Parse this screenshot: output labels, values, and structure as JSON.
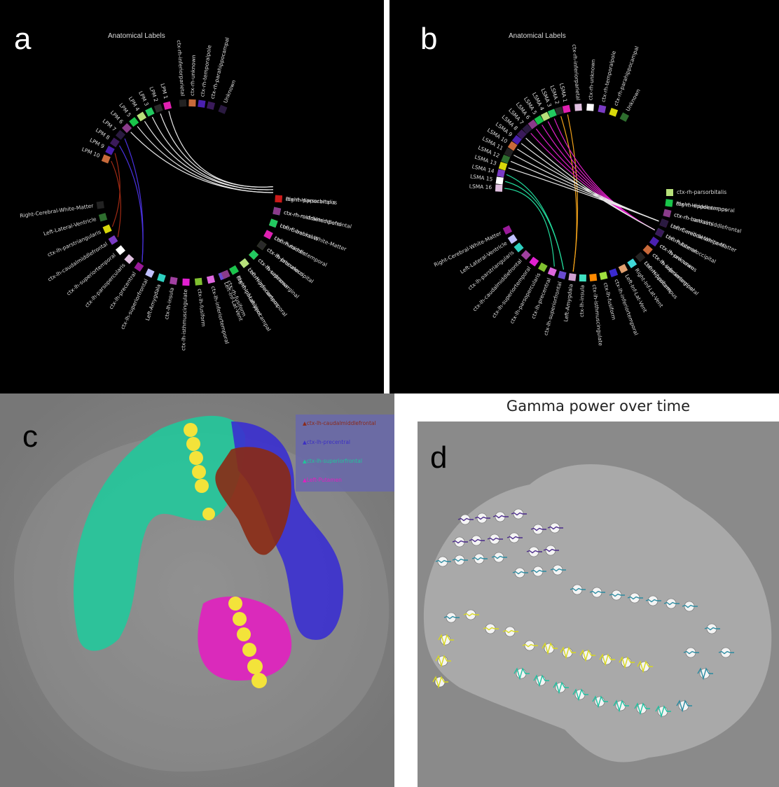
{
  "panels": {
    "a": {
      "letter": "a",
      "title": "Anatomical Labels",
      "labels": [
        {
          "text": "LPM 1",
          "angle": -104
        },
        {
          "text": "LPM 2",
          "angle": -110
        },
        {
          "text": "LPM 3",
          "angle": -116
        },
        {
          "text": "LPM 4",
          "angle": -122
        },
        {
          "text": "LPM 5",
          "angle": -128
        },
        {
          "text": "LPM 6",
          "angle": -134
        },
        {
          "text": "LPM 7",
          "angle": -140
        },
        {
          "text": "LPM 8",
          "angle": -146
        },
        {
          "text": "LPM 9",
          "angle": -152
        },
        {
          "text": "LPM 10",
          "angle": -158
        },
        {
          "text": "Right-Cerebral-White-Matter",
          "angle": -188
        },
        {
          "text": "Left-Lateral-Ventricle",
          "angle": -196
        },
        {
          "text": "ctx-lh-parstriangularis",
          "angle": -204
        },
        {
          "text": "ctx-lh-caudalmiddlefrontal",
          "angle": -212
        },
        {
          "text": "ctx-lh-superiortemporal",
          "angle": -220
        },
        {
          "text": "ctx-lh-parsopercularis",
          "angle": -228
        },
        {
          "text": "ctx-lh-precentral",
          "angle": -236
        },
        {
          "text": "ctx-lh-superiorfrontal",
          "angle": -244
        },
        {
          "text": "Left-Amygdala",
          "angle": -252
        },
        {
          "text": "ctx-lh-insula",
          "angle": -260
        },
        {
          "text": "ctx-lh-isthmuscingulate",
          "angle": -268
        },
        {
          "text": "ctx-lh-fusiform",
          "angle": -276
        },
        {
          "text": "ctx-lh-inferiortemporal",
          "angle": -284
        },
        {
          "text": "Left-Inf-Lat-Vent",
          "angle": -292
        },
        {
          "text": "Right-Inf-Lat-Vent",
          "angle": -300
        },
        {
          "text": "Left-Hippocampus",
          "angle": -308
        },
        {
          "text": "ctx-lh-supramarginal",
          "angle": -316
        },
        {
          "text": "ctx-lh-precuneus",
          "angle": -324
        },
        {
          "text": "Left-Putamen",
          "angle": -332
        },
        {
          "text": "Left-Cerebral-White-Matter",
          "angle": -340
        },
        {
          "text": "ctx-rh-rostralmiddlefrontal",
          "angle": -348
        },
        {
          "text": "Right-Hippocampus",
          "angle": -356
        },
        {
          "text": "ctx-rh-parsorbitalis",
          "angle": 4
        },
        {
          "text": "ctx-rh-middletemporal",
          "angle": 12
        },
        {
          "text": "ctx-rh-bankssts",
          "angle": 20
        },
        {
          "text": "ctx-rh-middletemporal",
          "angle": 28
        },
        {
          "text": "ctx-rh-lateraloccipital",
          "angle": 36
        },
        {
          "text": "ctx-rh-unknown",
          "angle": 44
        },
        {
          "text": "ctx-rh-inferiortemporal",
          "angle": 52
        },
        {
          "text": "ctx-rh-parahippocampal",
          "angle": 60
        },
        {
          "text": "ctx-rh-fusiform",
          "angle": 66
        },
        {
          "text": "Unknown",
          "angle": -68
        },
        {
          "text": "ctx-rh-parahippocampal",
          "angle": -76
        },
        {
          "text": "ctx-rh-temporalpole",
          "angle": -82
        },
        {
          "text": "ctx-rh-unknown",
          "angle": -88
        },
        {
          "text": "ctx-rh-inferiorparietal",
          "angle": -94
        }
      ]
    },
    "b": {
      "letter": "b",
      "title": "Anatomical Labels",
      "labels": [
        {
          "text": "LSMA 1",
          "angle": -102
        },
        {
          "text": "LSMA 2",
          "angle": -107
        },
        {
          "text": "LSMA 3",
          "angle": -112
        },
        {
          "text": "LSMA 4",
          "angle": -117
        },
        {
          "text": "LSMA 5",
          "angle": -122
        },
        {
          "text": "LSMA 6",
          "angle": -127
        },
        {
          "text": "LSMA 7",
          "angle": -132
        },
        {
          "text": "LSMA 8",
          "angle": -137
        },
        {
          "text": "LSMA 9",
          "angle": -142
        },
        {
          "text": "LSMA 10",
          "angle": -147
        },
        {
          "text": "LSMA 11",
          "angle": -152
        },
        {
          "text": "LSMA 12",
          "angle": -157
        },
        {
          "text": "LSMA 13",
          "angle": -162
        },
        {
          "text": "LSMA 14",
          "angle": -167
        },
        {
          "text": "LSMA 15",
          "angle": -172
        },
        {
          "text": "LSMA 16",
          "angle": -177
        },
        {
          "text": "Right-Cerebral-White-Matter",
          "angle": -206
        },
        {
          "text": "Left-Lateral-Ventricle",
          "angle": -213
        },
        {
          "text": "ctx-lh-parstriangularis",
          "angle": -220
        },
        {
          "text": "ctx-lh-caudalmiddlefrontal",
          "angle": -227
        },
        {
          "text": "ctx-lh-superiortemporal",
          "angle": -234
        },
        {
          "text": "ctx-lh-parsopercularis",
          "angle": -241
        },
        {
          "text": "ctx-lh-precentral",
          "angle": -248
        },
        {
          "text": "ctx-lh-superiorfrontal",
          "angle": -255
        },
        {
          "text": "Left-Amygdala",
          "angle": -262
        },
        {
          "text": "ctx-lh-insula",
          "angle": -269
        },
        {
          "text": "ctx-lh-isthmuscingulate",
          "angle": -276
        },
        {
          "text": "ctx-lh-fusiform",
          "angle": -283
        },
        {
          "text": "ctx-lh-inferiortemporal",
          "angle": -290
        },
        {
          "text": "Left-Inf-Lat-Vent",
          "angle": -297
        },
        {
          "text": "Right-Inf-Lat-Vent",
          "angle": -304
        },
        {
          "text": "Left-Hippocampus",
          "angle": -311
        },
        {
          "text": "ctx-lh-supramarginal",
          "angle": -318
        },
        {
          "text": "ctx-lh-precuneus",
          "angle": -325
        },
        {
          "text": "Left-Putamen",
          "angle": -332
        },
        {
          "text": "Left-Cerebral-White-Matter",
          "angle": -339
        },
        {
          "text": "ctx-rh-rostralmiddlefrontal",
          "angle": -346
        },
        {
          "text": "Right-Hippocampus",
          "angle": -353
        },
        {
          "text": "ctx-rh-parsorbitalis",
          "angle": 0
        },
        {
          "text": "ctx-rh-middletemporal",
          "angle": 7
        },
        {
          "text": "ctx-rh-bankssts",
          "angle": 14
        },
        {
          "text": "ctx-rh-middletemporal",
          "angle": 21
        },
        {
          "text": "ctx-rh-lateraloccipital",
          "angle": 28
        },
        {
          "text": "ctx-rh-unknown",
          "angle": 35
        },
        {
          "text": "ctx-rh-inferiortemporal",
          "angle": 42
        },
        {
          "text": "ctx-rh-fusiform",
          "angle": 49
        },
        {
          "text": "Unknown",
          "angle": -62
        },
        {
          "text": "ctx-rh-parahippocampal",
          "angle": -70
        },
        {
          "text": "ctx-rh-temporalpole",
          "angle": -78
        },
        {
          "text": "ctx-rh-unknown",
          "angle": -86
        },
        {
          "text": "ctx-rh-inferiorparietal",
          "angle": -94
        }
      ]
    },
    "c": {
      "letter": "c",
      "legend": [
        {
          "text": "ctx-lh-caudalmiddlefrontal",
          "color": "#8b2a1a"
        },
        {
          "text": "ctx-lh-precentral",
          "color": "#3b2fc4"
        },
        {
          "text": "ctx-lh-superiorfrontal",
          "color": "#1fc69a"
        },
        {
          "text": "Left-Putamen",
          "color": "#e01fc0"
        }
      ]
    },
    "d": {
      "letter": "d",
      "title": "Gamma power over time"
    }
  }
}
